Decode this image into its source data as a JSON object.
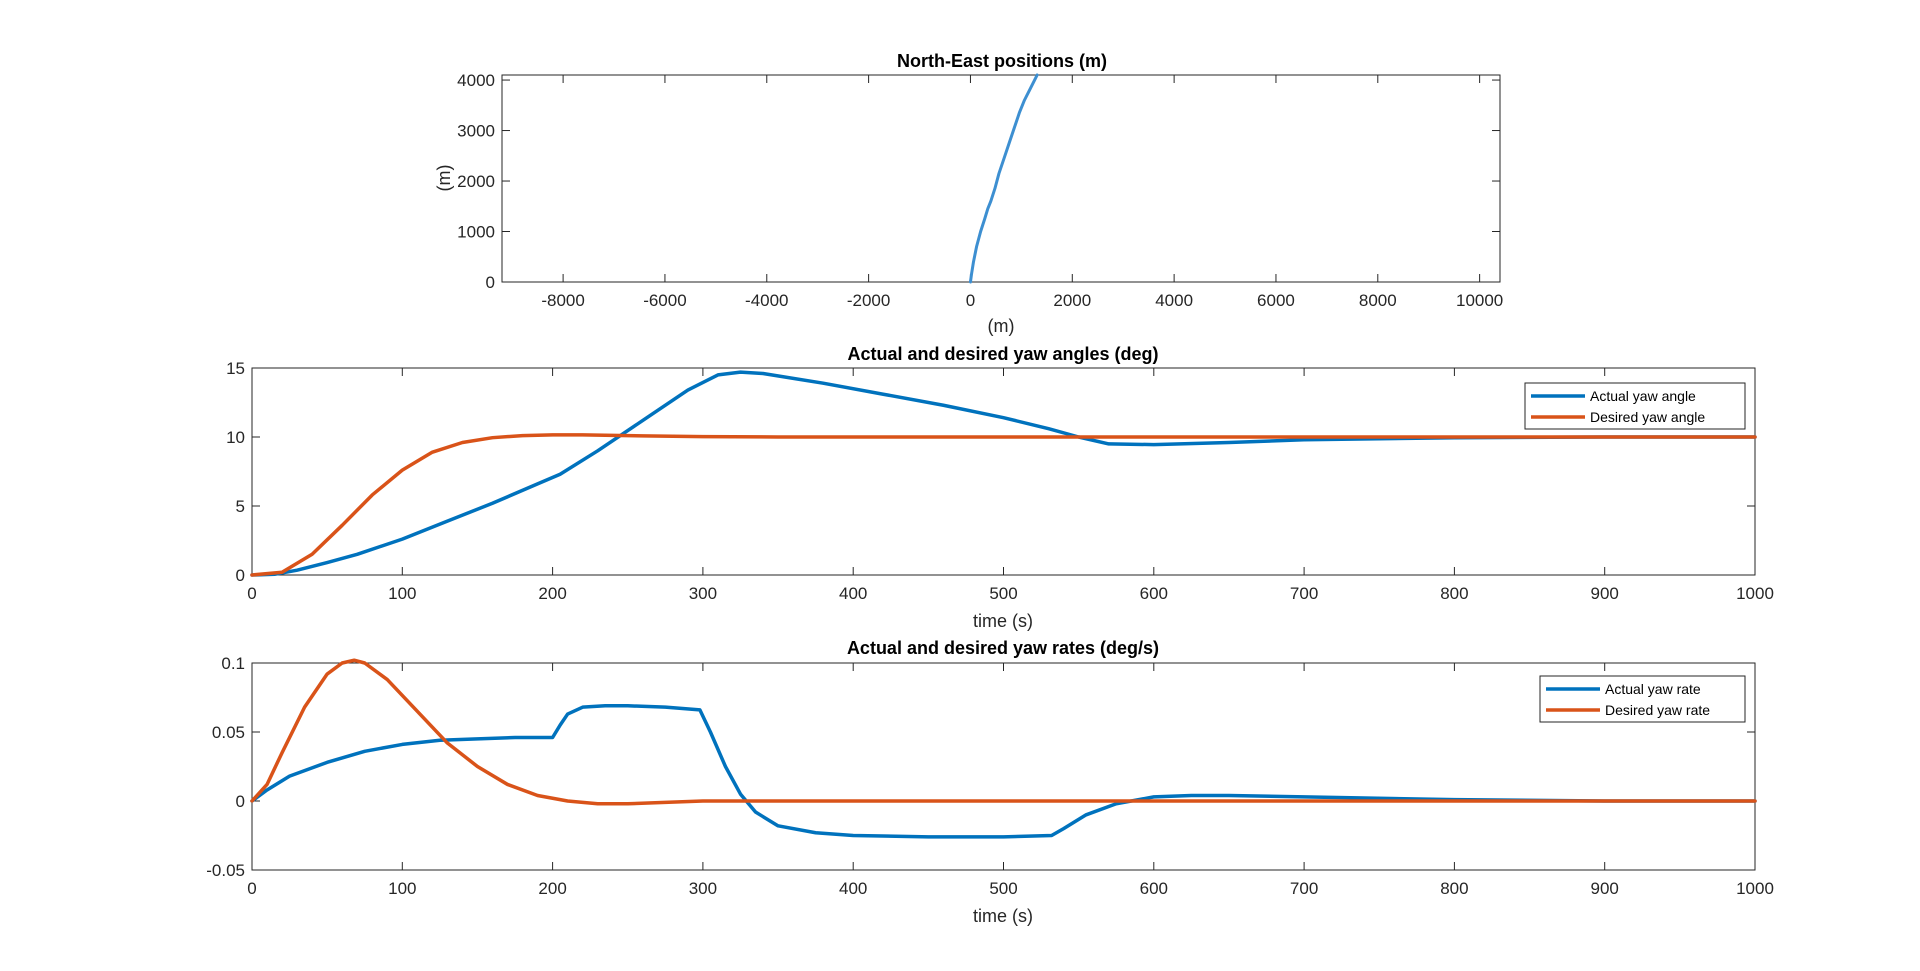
{
  "chart_data": [
    {
      "type": "line",
      "title": "North-East positions (m)",
      "xlabel": "(m)",
      "ylabel": "(m)",
      "xlim": [
        -9200,
        10400
      ],
      "ylim": [
        0,
        4100
      ],
      "xticks": [
        -8000,
        -6000,
        -4000,
        -2000,
        0,
        2000,
        4000,
        6000,
        8000,
        10000
      ],
      "xtick_labels": [
        "-8000",
        "-6000",
        "-4000",
        "-2000",
        "0",
        "2000",
        "4000",
        "6000",
        "8000",
        "10000"
      ],
      "yticks": [
        0,
        1000,
        2000,
        3000,
        4000
      ],
      "ytick_labels": [
        "0",
        "1000",
        "2000",
        "3000",
        "4000"
      ],
      "grid": false,
      "legend": null,
      "series": [
        {
          "color": "#3d8fd1",
          "x": [
            0,
            20,
            60,
            120,
            200,
            280,
            340,
            400,
            480,
            560,
            660,
            760,
            860,
            960,
            1060,
            1160,
            1260,
            1310
          ],
          "y": [
            0,
            150,
            400,
            700,
            1000,
            1250,
            1450,
            1600,
            1850,
            2150,
            2450,
            2750,
            3050,
            3350,
            3600,
            3800,
            4000,
            4100
          ]
        }
      ]
    },
    {
      "type": "line",
      "title": "Actual and desired yaw angles (deg)",
      "xlabel": "time (s)",
      "ylabel": "",
      "xlim": [
        0,
        1000
      ],
      "ylim": [
        0,
        15
      ],
      "xticks": [
        0,
        100,
        200,
        300,
        400,
        500,
        600,
        700,
        800,
        900,
        1000
      ],
      "xtick_labels": [
        "0",
        "100",
        "200",
        "300",
        "400",
        "500",
        "600",
        "700",
        "800",
        "900",
        "1000"
      ],
      "yticks": [
        0,
        5,
        10,
        15
      ],
      "ytick_labels": [
        "0",
        "5",
        "10",
        "15"
      ],
      "grid": false,
      "legend": "top-right",
      "series": [
        {
          "name": "Actual yaw angle",
          "color": "#0072bd",
          "x": [
            0,
            15,
            30,
            50,
            70,
            100,
            130,
            160,
            190,
            205,
            230,
            260,
            290,
            310,
            325,
            340,
            380,
            420,
            460,
            500,
            530,
            550,
            570,
            600,
            650,
            700,
            800,
            900,
            1000
          ],
          "y": [
            0,
            0.05,
            0.35,
            0.9,
            1.5,
            2.6,
            3.9,
            5.2,
            6.6,
            7.3,
            9.0,
            11.2,
            13.4,
            14.5,
            14.7,
            14.6,
            13.9,
            13.1,
            12.3,
            11.4,
            10.6,
            10.0,
            9.5,
            9.45,
            9.6,
            9.8,
            9.95,
            10.0,
            10.0
          ]
        },
        {
          "name": "Desired yaw angle",
          "color": "#d95319",
          "x": [
            0,
            20,
            40,
            60,
            80,
            100,
            120,
            140,
            160,
            180,
            200,
            220,
            240,
            260,
            280,
            300,
            350,
            400,
            500,
            600,
            700,
            800,
            900,
            1000
          ],
          "y": [
            0,
            0.2,
            1.5,
            3.6,
            5.8,
            7.6,
            8.9,
            9.6,
            9.95,
            10.1,
            10.15,
            10.15,
            10.12,
            10.08,
            10.05,
            10.03,
            10.0,
            10.0,
            10.0,
            10.0,
            10.0,
            10.0,
            10.0,
            10.0
          ]
        }
      ]
    },
    {
      "type": "line",
      "title": "Actual and desired yaw rates (deg/s)",
      "xlabel": "time (s)",
      "ylabel": "",
      "xlim": [
        0,
        1000
      ],
      "ylim": [
        -0.05,
        0.1
      ],
      "xticks": [
        0,
        100,
        200,
        300,
        400,
        500,
        600,
        700,
        800,
        900,
        1000
      ],
      "xtick_labels": [
        "0",
        "100",
        "200",
        "300",
        "400",
        "500",
        "600",
        "700",
        "800",
        "900",
        "1000"
      ],
      "yticks": [
        -0.05,
        0,
        0.05,
        0.1
      ],
      "ytick_labels": [
        "-0.05",
        "0",
        "0.05",
        "0.1"
      ],
      "grid": false,
      "legend": "top-right",
      "series": [
        {
          "name": "Actual yaw rate",
          "color": "#0072bd",
          "x": [
            0,
            10,
            25,
            50,
            75,
            100,
            125,
            150,
            175,
            200,
            205,
            210,
            220,
            235,
            250,
            275,
            298,
            305,
            315,
            325,
            335,
            350,
            375,
            400,
            450,
            500,
            532,
            540,
            555,
            575,
            600,
            625,
            650,
            700,
            800,
            900,
            1000
          ],
          "y": [
            0,
            0.008,
            0.018,
            0.028,
            0.036,
            0.041,
            0.044,
            0.045,
            0.046,
            0.046,
            0.055,
            0.063,
            0.068,
            0.069,
            0.069,
            0.068,
            0.066,
            0.05,
            0.025,
            0.005,
            -0.008,
            -0.018,
            -0.023,
            -0.025,
            -0.026,
            -0.026,
            -0.025,
            -0.02,
            -0.01,
            -0.002,
            0.003,
            0.004,
            0.004,
            0.003,
            0.001,
            0.0,
            0.0
          ]
        },
        {
          "name": "Desired yaw rate",
          "color": "#d95319",
          "x": [
            0,
            10,
            20,
            35,
            50,
            60,
            68,
            75,
            90,
            110,
            130,
            150,
            170,
            190,
            210,
            230,
            250,
            275,
            300,
            350,
            400,
            500,
            600,
            700,
            800,
            900,
            1000
          ],
          "y": [
            0,
            0.012,
            0.035,
            0.068,
            0.092,
            0.1,
            0.102,
            0.1,
            0.088,
            0.065,
            0.042,
            0.025,
            0.012,
            0.004,
            0.0,
            -0.002,
            -0.002,
            -0.001,
            0.0,
            0.0,
            0.0,
            0.0,
            0.0,
            0.0,
            0.0,
            0.0,
            0.0
          ]
        }
      ]
    }
  ]
}
